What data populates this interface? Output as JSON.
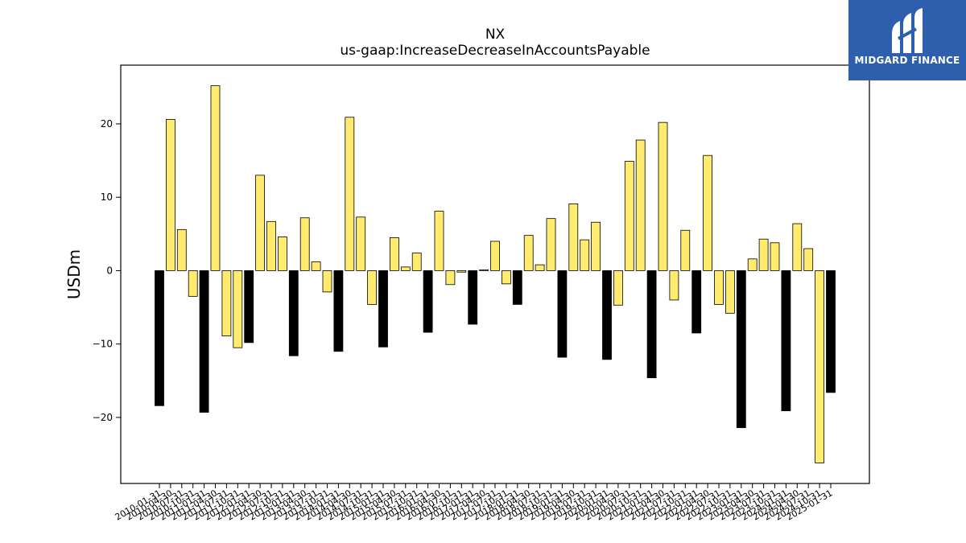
{
  "brand": {
    "name": "MIDGARD FINANCE",
    "bg_color": "#2d5fae"
  },
  "chart_data": {
    "type": "bar",
    "title": "NX",
    "subtitle": "us-gaap:IncreaseDecreaseInAccountsPayable",
    "ylabel": "USDm",
    "xlabel": "",
    "ylim": [
      -29,
      28
    ],
    "yticks": [
      -20,
      -10,
      0,
      10,
      20
    ],
    "grid": false,
    "colors": {
      "q4_bar": "#000000",
      "other_bar": "#ffec6e",
      "edge": "#000000"
    },
    "categories": [
      "2010-01-31",
      "2010-04-30",
      "2010-07-31",
      "2010-10-31",
      "2011-01-31",
      "2011-04-30",
      "2011-07-31",
      "2011-10-31",
      "2012-01-31",
      "2012-04-30",
      "2012-07-31",
      "2012-10-31",
      "2013-01-31",
      "2013-04-30",
      "2013-07-31",
      "2013-10-31",
      "2014-01-31",
      "2014-04-30",
      "2014-07-31",
      "2014-10-31",
      "2015-01-31",
      "2015-04-30",
      "2015-07-31",
      "2015-10-31",
      "2016-01-31",
      "2016-04-30",
      "2016-07-31",
      "2016-10-31",
      "2017-01-31",
      "2017-04-30",
      "2017-07-31",
      "2017-10-31",
      "2018-01-31",
      "2018-04-30",
      "2018-07-31",
      "2018-10-31",
      "2019-01-31",
      "2019-04-30",
      "2019-07-31",
      "2019-10-31",
      "2020-01-31",
      "2020-04-30",
      "2020-07-31",
      "2020-10-31",
      "2021-01-31",
      "2021-04-30",
      "2021-07-31",
      "2021-10-31",
      "2022-01-31",
      "2022-04-30",
      "2022-07-31",
      "2022-10-31",
      "2023-01-31",
      "2023-04-30",
      "2023-07-31",
      "2023-10-31",
      "2024-01-31",
      "2024-04-30",
      "2024-07-31",
      "2024-10-31",
      "2025-01-31"
    ],
    "values": [
      -18.4,
      20.6,
      5.6,
      -3.5,
      -19.3,
      25.2,
      -8.9,
      -10.5,
      -9.8,
      13.0,
      6.7,
      4.6,
      -11.6,
      7.2,
      1.2,
      -2.9,
      -11.0,
      20.9,
      7.3,
      -4.6,
      -10.4,
      4.5,
      0.5,
      2.4,
      -8.4,
      8.1,
      -1.9,
      -0.2,
      -7.3,
      0.1,
      4.0,
      -1.8,
      -4.6,
      4.8,
      0.8,
      7.1,
      -11.8,
      9.1,
      4.2,
      6.6,
      -12.1,
      -4.7,
      14.9,
      17.8,
      -14.6,
      20.2,
      -4.0,
      5.5,
      -8.5,
      15.7,
      -4.6,
      -5.8,
      -21.4,
      1.6,
      4.3,
      3.8,
      -19.1,
      6.4,
      3.0,
      -26.2,
      -16.6
    ]
  }
}
